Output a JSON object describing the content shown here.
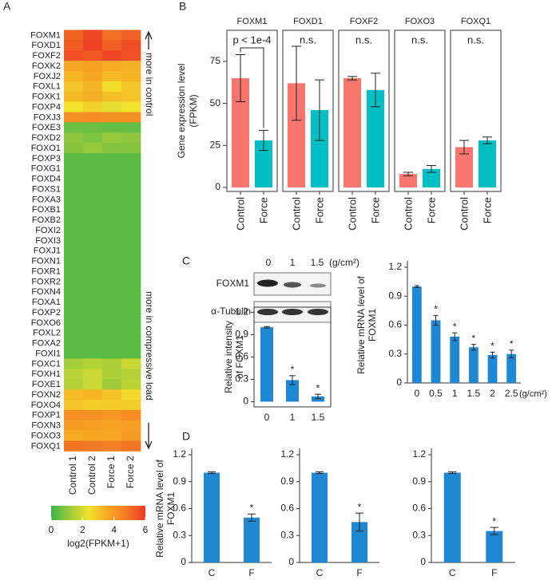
{
  "panel_labels": [
    "A",
    "B",
    "C",
    "D"
  ],
  "blot": {
    "lanes": [
      "0",
      "1",
      "1.5"
    ],
    "unit": "(g/cm²)",
    "rows": [
      "FOXM1",
      "α-Tubulin"
    ]
  },
  "chart_data": [
    {
      "type": "heatmap",
      "rows": [
        "FOXM1",
        "FOXD1",
        "FOXF2",
        "FOXK2",
        "FOXJ2",
        "FOXL1",
        "FOXK1",
        "FOXP4",
        "FOXJ3",
        "FOXE3",
        "FOXD2",
        "FOXO1",
        "FOXP3",
        "FOXG1",
        "FOXD4",
        "FOXS1",
        "FOXA3",
        "FOXB1",
        "FOXB2",
        "FOXI2",
        "FOXI3",
        "FOXJ1",
        "FOXN1",
        "FOXR1",
        "FOXR2",
        "FOXN4",
        "FOXA1",
        "FOXP2",
        "FOXO6",
        "FOXL2",
        "FOXA2",
        "FOXI1",
        "FOXC1",
        "FOXH1",
        "FOXE1",
        "FOXN2",
        "FOXO4",
        "FOXP1",
        "FOXN3",
        "FOXO3",
        "FOXQ1"
      ],
      "categories": [
        "Control 1",
        "Control 2",
        "Force 1",
        "Force 2"
      ],
      "values": [
        [
          5.2,
          5.8,
          5.0,
          5.3
        ],
        [
          5.4,
          5.9,
          5.3,
          5.7
        ],
        [
          5.6,
          5.5,
          5.8,
          5.6
        ],
        [
          3.6,
          3.7,
          3.5,
          3.4
        ],
        [
          3.3,
          3.6,
          3.2,
          3.3
        ],
        [
          3.0,
          3.3,
          2.5,
          3.0
        ],
        [
          3.2,
          3.4,
          3.1,
          3.0
        ],
        [
          2.4,
          2.7,
          2.2,
          2.4
        ],
        [
          4.2,
          4.3,
          4.2,
          4.2
        ],
        [
          0.6,
          0.6,
          0.5,
          0.5
        ],
        [
          1.0,
          0.8,
          1.1,
          1.0
        ],
        [
          0.9,
          1.1,
          0.9,
          0.9
        ],
        [
          0.4,
          0.4,
          0.4,
          0.4
        ],
        [
          0.4,
          0.4,
          0.4,
          0.4
        ],
        [
          0.4,
          0.4,
          0.4,
          0.4
        ],
        [
          0.4,
          0.4,
          0.4,
          0.4
        ],
        [
          0.4,
          0.4,
          0.4,
          0.4
        ],
        [
          0.4,
          0.4,
          0.4,
          0.4
        ],
        [
          0.4,
          0.4,
          0.4,
          0.4
        ],
        [
          0.4,
          0.4,
          0.4,
          0.4
        ],
        [
          0.4,
          0.4,
          0.4,
          0.4
        ],
        [
          0.4,
          0.4,
          0.4,
          0.4
        ],
        [
          0.4,
          0.4,
          0.4,
          0.4
        ],
        [
          0.4,
          0.4,
          0.4,
          0.4
        ],
        [
          0.4,
          0.4,
          0.4,
          0.4
        ],
        [
          0.4,
          0.4,
          0.4,
          0.4
        ],
        [
          0.4,
          0.4,
          0.4,
          0.4
        ],
        [
          0.4,
          0.4,
          0.4,
          0.4
        ],
        [
          0.4,
          0.4,
          0.4,
          0.4
        ],
        [
          0.4,
          0.4,
          0.4,
          0.4
        ],
        [
          0.4,
          0.4,
          0.4,
          0.4
        ],
        [
          0.4,
          0.4,
          0.4,
          0.4
        ],
        [
          1.3,
          1.5,
          1.4,
          1.8
        ],
        [
          1.6,
          1.8,
          1.4,
          1.5
        ],
        [
          1.5,
          1.8,
          1.2,
          1.6
        ],
        [
          3.2,
          3.3,
          3.0,
          2.6
        ],
        [
          3.0,
          2.8,
          2.9,
          2.8
        ],
        [
          4.2,
          4.2,
          4.0,
          4.3
        ],
        [
          3.9,
          3.8,
          3.7,
          3.8
        ],
        [
          3.5,
          3.6,
          3.6,
          3.9
        ],
        [
          4.9,
          4.8,
          4.7,
          4.9
        ]
      ],
      "colors": [
        "#39b54a",
        "#9fcb3b",
        "#f1e22c",
        "#f7a623",
        "#f37a24",
        "#ee3b24"
      ],
      "clim": [
        0,
        6
      ],
      "cticks": [
        0,
        2,
        4,
        6
      ],
      "clabel": "log2(FPKM+1)",
      "annotations": [
        "more in control",
        "more in compressive load"
      ]
    },
    {
      "type": "faceted_bar",
      "ylabel": [
        "Gene expression level",
        "(FPKM)"
      ],
      "categories": [
        "Control",
        "Force"
      ],
      "colors": [
        "#f8766d",
        "#00bfc4"
      ],
      "ylim": [
        -2.4,
        93.5
      ],
      "yticks": [
        0,
        25,
        50,
        75
      ],
      "panels": [
        {
          "title": "FOXM1",
          "values": [
            65,
            28
          ],
          "errors": [
            14,
            6
          ],
          "annotation": "p < 1e-4",
          "bracket": true
        },
        {
          "title": "FOXD1",
          "values": [
            62,
            46
          ],
          "errors": [
            22,
            18
          ],
          "annotation": "n.s."
        },
        {
          "title": "FOXF2",
          "values": [
            65,
            58
          ],
          "errors": [
            1,
            10
          ],
          "annotation": "n.s."
        },
        {
          "title": "FOXO3",
          "values": [
            8,
            11
          ],
          "errors": [
            1,
            2
          ],
          "annotation": "n.s."
        },
        {
          "title": "FOXQ1",
          "values": [
            24,
            28
          ],
          "errors": [
            4,
            2
          ],
          "annotation": "n.s."
        }
      ]
    },
    {
      "type": "bar",
      "ylabel": [
        "Relative intensity",
        "of FOXM1"
      ],
      "categories": [
        "0",
        "1",
        "1.5"
      ],
      "values": [
        1.0,
        0.29,
        0.07
      ],
      "errors": [
        0.01,
        0.06,
        0.03
      ],
      "significance": [
        null,
        "*",
        "*"
      ],
      "color": "#1f88d2",
      "ylim": [
        -0.07,
        1.27
      ],
      "yticks": [
        0,
        0.3,
        0.6,
        0.9,
        1.2
      ],
      "frame": true
    },
    {
      "type": "bar",
      "ylabel": [
        "Relative mRNA level of",
        "FOXM1"
      ],
      "categories": [
        "0",
        "0.5",
        "1",
        "1.5",
        "2",
        "2.5"
      ],
      "xunit": "(g/cm²)",
      "values": [
        1.0,
        0.65,
        0.48,
        0.37,
        0.29,
        0.3
      ],
      "errors": [
        0.01,
        0.05,
        0.04,
        0.03,
        0.03,
        0.04
      ],
      "significance": [
        null,
        "*",
        "*",
        "*",
        "*",
        "*"
      ],
      "color": "#1f88d2",
      "ylim": [
        0,
        1.2
      ],
      "yticks": [
        0,
        0.3,
        0.6,
        0.9,
        1.2
      ]
    },
    {
      "type": "bar",
      "ylabel": [
        "Relative mRNA level of",
        "FOXM1"
      ],
      "categories": [
        "C",
        "F"
      ],
      "values": [
        1.0,
        0.5
      ],
      "errors": [
        0.01,
        0.04
      ],
      "significance": [
        null,
        "*"
      ],
      "color": "#1f88d2",
      "ylim": [
        0,
        1.2
      ],
      "yticks": [
        0,
        0.3,
        0.6,
        0.9,
        1.2
      ]
    },
    {
      "type": "bar",
      "categories": [
        "C",
        "F"
      ],
      "values": [
        1.0,
        0.45
      ],
      "errors": [
        0.01,
        0.1
      ],
      "significance": [
        null,
        "*"
      ],
      "color": "#1f88d2",
      "ylim": [
        0,
        1.2
      ],
      "yticks": [
        0,
        0.3,
        0.6,
        0.9,
        1.2
      ]
    },
    {
      "type": "bar",
      "categories": [
        "C",
        "F"
      ],
      "values": [
        1.0,
        0.35
      ],
      "errors": [
        0.01,
        0.04
      ],
      "significance": [
        null,
        "*"
      ],
      "color": "#1f88d2",
      "ylim": [
        0,
        1.2
      ],
      "yticks": [
        0,
        0.3,
        0.6,
        0.9,
        1.2
      ]
    }
  ]
}
